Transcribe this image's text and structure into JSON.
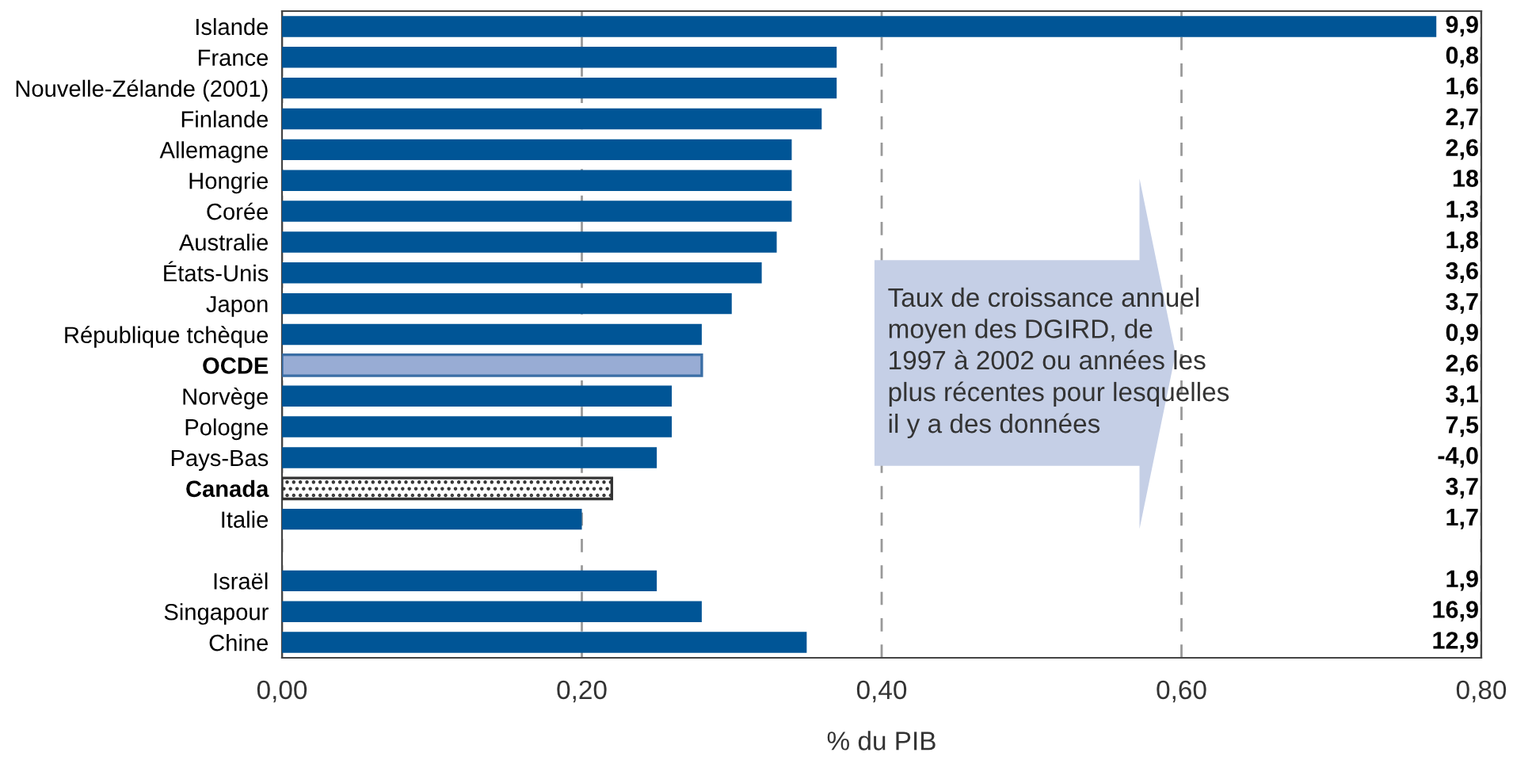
{
  "chart_data": {
    "type": "bar",
    "orientation": "horizontal",
    "xlabel": "% du PIB",
    "categories": [
      "Islande",
      "France",
      "Nouvelle-Zélande (2001)",
      "Finlande",
      "Allemagne",
      "Hongrie",
      "Corée",
      "Australie",
      "États-Unis",
      "Japon",
      "République tchèque",
      "OCDE",
      "Norvège",
      "Pologne",
      "Pays-Bas",
      "Canada",
      "Italie",
      null,
      "Israël",
      "Singapour",
      "Chine"
    ],
    "values": [
      0.77,
      0.37,
      0.37,
      0.36,
      0.34,
      0.34,
      0.34,
      0.33,
      0.32,
      0.3,
      0.28,
      0.28,
      0.26,
      0.26,
      0.25,
      0.22,
      0.2,
      null,
      0.25,
      0.28,
      0.35
    ],
    "colors": [
      "#005596",
      "#005596",
      "#005596",
      "#005596",
      "#005596",
      "#005596",
      "#005596",
      "#005596",
      "#005596",
      "#005596",
      "#005596",
      "#98acd4",
      "#005596",
      "#005596",
      "#005596",
      "#333333",
      "#005596",
      "#005596",
      "#005596",
      "#005596",
      "#005596"
    ],
    "xlim": [
      0,
      0.8
    ],
    "xticks": [
      {
        "value": 0,
        "label": "0,00"
      },
      {
        "value": 0.2,
        "label": "0,20"
      },
      {
        "value": 0.4,
        "label": "0,40"
      },
      {
        "value": 0.6,
        "label": "0,60"
      },
      {
        "value": 0.8,
        "label": "0,80"
      }
    ],
    "grid": "x",
    "annotations": [
      "Taux de croissance annuel\nmoyen des DGIRD, de\n1997 à 2002 ou années les\nplus récentes pour lesquelles\nil y a des données",
      "9,9",
      "0,8",
      "1,6",
      "2,7",
      "2,6",
      "18",
      "1,3",
      "1,8",
      "3,6",
      "3,7",
      "0,9",
      "2,6",
      "3,1",
      "7,5",
      "-4,0",
      "3,7",
      "1,7",
      "1,9",
      "16,9",
      "12,9"
    ]
  }
}
